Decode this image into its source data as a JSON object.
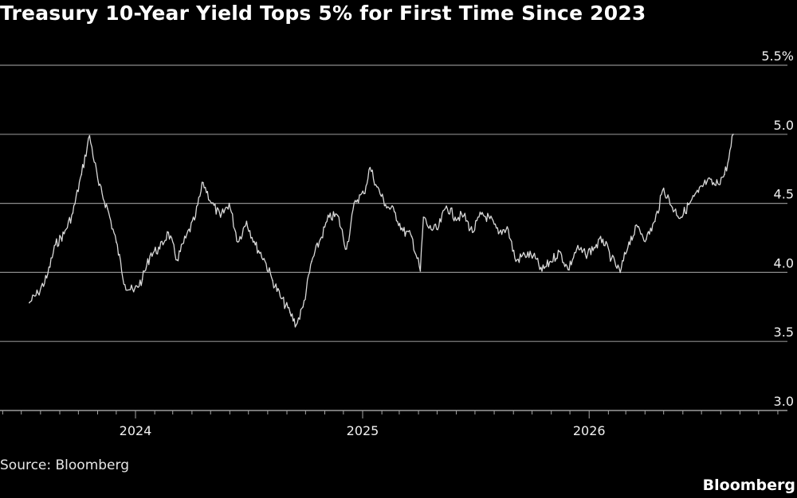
{
  "header": {
    "title": "Treasury 10-Year Yield Tops 5% for First Time Since 2023"
  },
  "footer": {
    "source": "Source: Bloomberg",
    "brand": "Bloomberg"
  },
  "chart_data": {
    "type": "line",
    "title": "Treasury 10-Year Yield Tops 5% for First Time Since 2023",
    "xlabel": "",
    "ylabel": "",
    "grid": true,
    "legend": "none",
    "ylim": [
      3.0,
      5.5
    ],
    "y_ticks": [
      "3.0",
      "3.5",
      "4.0",
      "4.5",
      "5.0",
      "5.5%"
    ],
    "x_tick_labels": [
      "2024",
      "2025",
      "2026"
    ],
    "line_color": "#d9d9d9",
    "x": [
      "2023-07-14",
      "2023-07-28",
      "2023-08-11",
      "2023-08-25",
      "2023-09-08",
      "2023-09-22",
      "2023-10-06",
      "2023-10-19",
      "2023-11-03",
      "2023-11-17",
      "2023-12-01",
      "2023-12-15",
      "2023-12-29",
      "2024-01-12",
      "2024-01-26",
      "2024-02-09",
      "2024-02-23",
      "2024-03-08",
      "2024-03-22",
      "2024-04-05",
      "2024-04-19",
      "2024-05-03",
      "2024-05-17",
      "2024-05-31",
      "2024-06-14",
      "2024-06-28",
      "2024-07-12",
      "2024-07-26",
      "2024-08-09",
      "2024-08-23",
      "2024-09-06",
      "2024-09-16",
      "2024-09-27",
      "2024-10-11",
      "2024-10-25",
      "2024-11-08",
      "2024-11-22",
      "2024-12-06",
      "2024-12-20",
      "2025-01-03",
      "2025-01-13",
      "2025-01-24",
      "2025-02-07",
      "2025-02-21",
      "2025-03-07",
      "2025-03-21",
      "2025-04-04",
      "2025-04-09",
      "2025-04-18",
      "2025-05-02",
      "2025-05-16",
      "2025-05-30",
      "2025-06-13",
      "2025-06-27",
      "2025-07-11",
      "2025-07-25",
      "2025-08-08",
      "2025-08-22",
      "2025-09-05",
      "2025-09-19",
      "2025-10-03",
      "2025-10-17",
      "2025-10-31",
      "2025-11-14",
      "2025-11-28",
      "2025-12-12",
      "2025-12-26",
      "2026-01-09",
      "2026-01-23",
      "2026-02-06",
      "2026-02-20",
      "2026-03-06",
      "2026-03-20",
      "2026-04-03",
      "2026-04-17",
      "2026-05-01",
      "2026-05-15",
      "2026-05-29",
      "2026-06-12",
      "2026-06-26",
      "2026-07-10",
      "2026-07-24",
      "2026-08-07",
      "2026-08-14",
      "2026-08-21"
    ],
    "series": [
      {
        "values": [
          3.78,
          3.85,
          3.96,
          4.2,
          4.28,
          4.43,
          4.71,
          4.99,
          4.63,
          4.46,
          4.22,
          3.91,
          3.86,
          3.95,
          4.14,
          4.17,
          4.29,
          4.09,
          4.25,
          4.38,
          4.65,
          4.5,
          4.4,
          4.5,
          4.22,
          4.37,
          4.2,
          4.1,
          3.94,
          3.81,
          3.71,
          3.62,
          3.75,
          4.08,
          4.24,
          4.4,
          4.41,
          4.17,
          4.52,
          4.57,
          4.76,
          4.62,
          4.49,
          4.44,
          4.3,
          4.26,
          4.01,
          4.4,
          4.32,
          4.31,
          4.48,
          4.4,
          4.41,
          4.29,
          4.42,
          4.39,
          4.28,
          4.33,
          4.08,
          4.13,
          4.12,
          4.01,
          4.08,
          4.15,
          4.02,
          4.17,
          4.13,
          4.18,
          4.24,
          4.1,
          4.0,
          4.22,
          4.33,
          4.24,
          4.37,
          4.61,
          4.47,
          4.4,
          4.5,
          4.58,
          4.66,
          4.63,
          4.71,
          4.82,
          5.0
        ]
      }
    ]
  }
}
